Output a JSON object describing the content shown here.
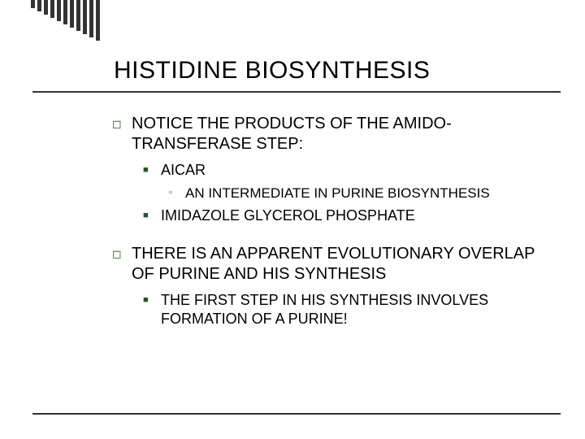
{
  "title": "HISTIDINE BIOSYNTHESIS",
  "decor": {
    "bar_count": 11,
    "bar_color": "#333333",
    "rule_color": "#333333",
    "bullet_color": "#225522"
  },
  "typography": {
    "title_fontsize": 30,
    "lvl1_fontsize": 20,
    "lvl2_fontsize": 18,
    "lvl3_fontsize": 17,
    "font_family": "Arial"
  },
  "background_color": "#ffffff",
  "items": {
    "p1": "NOTICE THE PRODUCTS OF THE AMIDO-TRANSFERASE STEP:",
    "p1a": "AICAR",
    "p1a1": "AN INTERMEDIATE IN PURINE BIOSYNTHESIS",
    "p1b": "IMIDAZOLE GLYCEROL PHOSPHATE",
    "p2": "THERE IS AN APPARENT EVOLUTIONARY OVERLAP OF PURINE AND HIS SYNTHESIS",
    "p2a": "THE FIRST STEP IN HIS SYNTHESIS INVOLVES FORMATION OF A PURINE!"
  },
  "bullets": {
    "lvl1": "◻",
    "lvl2": "■",
    "lvl3": "�ād"
  }
}
